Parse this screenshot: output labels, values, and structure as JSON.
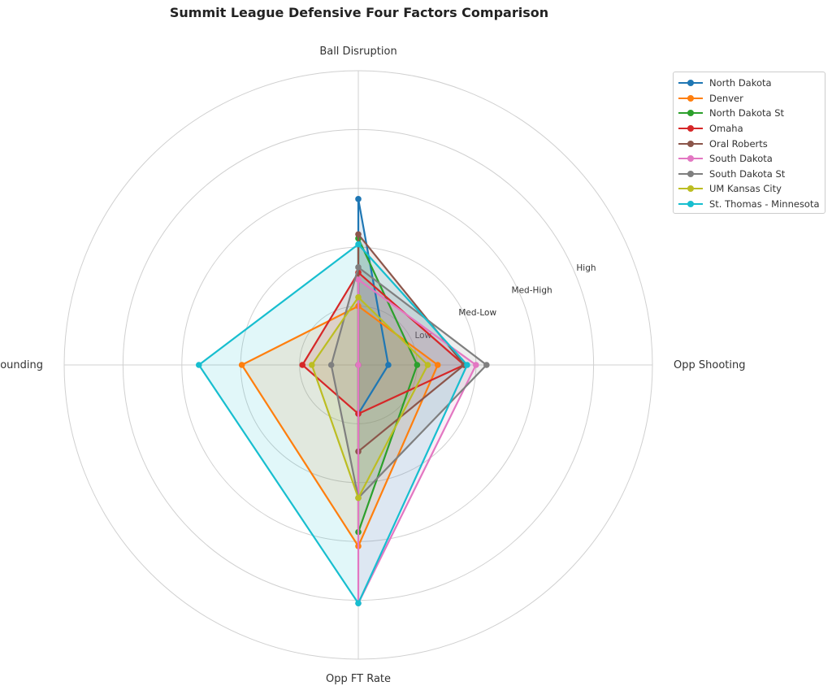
{
  "chart_data": {
    "type": "radar",
    "title": "Summit League Defensive Four Factors Comparison",
    "axes": [
      "Ball Disruption",
      "Opp Shooting",
      "Opp FT Rate",
      "Def Rebounding"
    ],
    "rlim": [
      0,
      5
    ],
    "rticks": [
      1,
      2,
      3,
      4
    ],
    "rtick_labels": [
      "Low",
      "Med-Low",
      "Med-High",
      "High"
    ],
    "grid": true,
    "legend_position": "upper-right outside",
    "series": [
      {
        "name": "North Dakota",
        "color": "#1f77b4",
        "values": [
          2.82,
          0.51,
          0.83,
          0.0
        ]
      },
      {
        "name": "Denver",
        "color": "#ff7f0e",
        "values": [
          1.0,
          1.35,
          3.08,
          1.98
        ]
      },
      {
        "name": "North Dakota St",
        "color": "#2ca02c",
        "values": [
          2.15,
          1.0,
          2.84,
          0.0
        ]
      },
      {
        "name": "Omaha",
        "color": "#d62728",
        "values": [
          1.57,
          1.8,
          0.83,
          0.95
        ]
      },
      {
        "name": "Oral Roberts",
        "color": "#8c564b",
        "values": [
          2.22,
          1.8,
          1.47,
          0.0
        ]
      },
      {
        "name": "South Dakota",
        "color": "#e377c2",
        "values": [
          1.45,
          2.0,
          4.05,
          0.0
        ]
      },
      {
        "name": "South Dakota St",
        "color": "#7f7f7f",
        "values": [
          1.66,
          2.18,
          2.26,
          0.46
        ]
      },
      {
        "name": "UM Kansas City",
        "color": "#bcbd22",
        "values": [
          1.15,
          1.18,
          2.26,
          0.79
        ]
      },
      {
        "name": "St. Thomas - Minnesota",
        "color": "#17becf",
        "values": [
          2.05,
          1.85,
          4.05,
          2.71
        ]
      }
    ]
  }
}
